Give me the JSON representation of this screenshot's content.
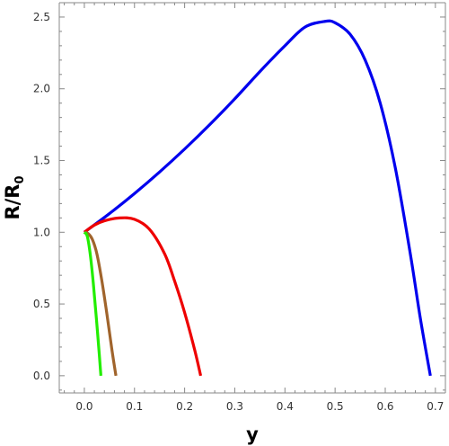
{
  "chart_data": {
    "type": "line",
    "xlabel": "y",
    "ylabel_main": "R/R",
    "ylabel_sub": "0",
    "xlim": [
      -0.05,
      0.72
    ],
    "ylim": [
      -0.12,
      2.6
    ],
    "x_ticks": [
      0.0,
      0.1,
      0.2,
      0.3,
      0.4,
      0.5,
      0.6,
      0.7
    ],
    "x_tick_labels": [
      "0.0",
      "0.1",
      "0.2",
      "0.3",
      "0.4",
      "0.5",
      "0.6",
      "0.7"
    ],
    "y_ticks": [
      0.0,
      0.5,
      1.0,
      1.5,
      2.0,
      2.5
    ],
    "y_tick_labels": [
      "0.0",
      "0.5",
      "1.0",
      "1.5",
      "2.0",
      "2.5"
    ],
    "grid": false,
    "series": [
      {
        "color": "#0000ee",
        "x": [
          0.0,
          0.05,
          0.1,
          0.15,
          0.2,
          0.25,
          0.3,
          0.35,
          0.4,
          0.44,
          0.48,
          0.5,
          0.53,
          0.56,
          0.59,
          0.62,
          0.65,
          0.67,
          0.69
        ],
        "y": [
          1.0,
          1.13,
          1.27,
          1.42,
          1.58,
          1.75,
          1.93,
          2.12,
          2.3,
          2.43,
          2.47,
          2.46,
          2.38,
          2.2,
          1.9,
          1.45,
          0.85,
          0.4,
          0.0
        ]
      },
      {
        "color": "#ee0000",
        "x": [
          0.0,
          0.02,
          0.04,
          0.07,
          0.1,
          0.13,
          0.16,
          0.18,
          0.2,
          0.22,
          0.232
        ],
        "y": [
          1.0,
          1.05,
          1.08,
          1.1,
          1.09,
          1.02,
          0.85,
          0.66,
          0.44,
          0.18,
          0.0
        ]
      },
      {
        "color": "#a0642c",
        "x": [
          0.0,
          0.008,
          0.016,
          0.025,
          0.035,
          0.045,
          0.055,
          0.063
        ],
        "y": [
          1.0,
          0.99,
          0.95,
          0.85,
          0.66,
          0.43,
          0.18,
          0.0
        ]
      },
      {
        "color": "#22ee00",
        "x": [
          0.0,
          0.006,
          0.012,
          0.018,
          0.024,
          0.03,
          0.033
        ],
        "y": [
          1.0,
          0.97,
          0.84,
          0.64,
          0.4,
          0.14,
          0.0
        ]
      }
    ]
  }
}
